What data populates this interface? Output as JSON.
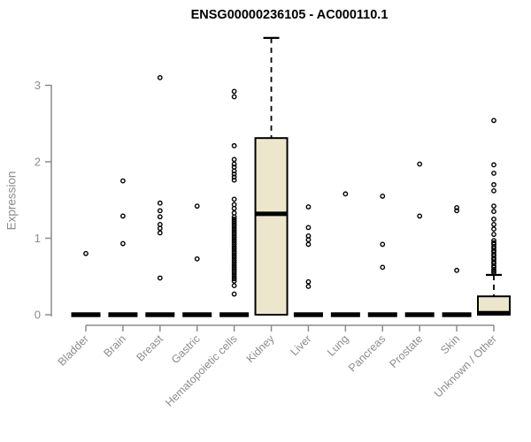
{
  "chart_data": {
    "type": "boxplot",
    "title": "ENSG00000236105 - AC000110.1",
    "ylabel": "Expression",
    "xlabel": "",
    "ylim": [
      0,
      3.65
    ],
    "yticks": [
      0,
      1,
      2,
      3
    ],
    "grid": false,
    "legend": "none",
    "colors": {
      "box_fill": "#ece7cc",
      "box_stroke": "#000000",
      "median": "#000000",
      "outlier": "#000000",
      "axis": "#8c8c8c",
      "tick_text": "#8c8c8c",
      "title_text": "#000000",
      "background": "#ffffff"
    },
    "categories": [
      "Bladder",
      "Brain",
      "Breast",
      "Gastric",
      "Hematopoietic cells",
      "Kidney",
      "Liver",
      "Lung",
      "Pancreas",
      "Prostate",
      "Skin",
      "Unknown / Other"
    ],
    "boxes": [
      {
        "label": "Bladder",
        "q1": 0,
        "median": 0,
        "q3": 0,
        "whisker_low": 0,
        "whisker_high": 0,
        "outliers": [
          0.8
        ]
      },
      {
        "label": "Brain",
        "q1": 0,
        "median": 0,
        "q3": 0,
        "whisker_low": 0,
        "whisker_high": 0,
        "outliers": [
          1.75,
          1.29,
          0.93
        ]
      },
      {
        "label": "Breast",
        "q1": 0,
        "median": 0,
        "q3": 0,
        "whisker_low": 0,
        "whisker_high": 0,
        "outliers": [
          3.1,
          1.46,
          1.36,
          1.28,
          1.18,
          1.13,
          1.07,
          0.48
        ]
      },
      {
        "label": "Gastric",
        "q1": 0,
        "median": 0,
        "q3": 0,
        "whisker_low": 0,
        "whisker_high": 0,
        "outliers": [
          1.42,
          0.73
        ]
      },
      {
        "label": "Hematopoietic cells",
        "q1": 0,
        "median": 0,
        "q3": 0,
        "whisker_low": 0,
        "whisker_high": 0,
        "outliers": [
          2.92,
          2.85,
          2.21,
          2.03,
          1.97,
          1.93,
          1.88,
          1.84,
          1.8,
          1.76,
          1.51,
          1.44,
          1.39,
          1.33,
          1.28,
          1.25,
          1.22,
          1.19,
          1.16,
          1.13,
          1.1,
          1.07,
          1.04,
          1.01,
          0.98,
          0.95,
          0.92,
          0.89,
          0.86,
          0.83,
          0.8,
          0.77,
          0.74,
          0.71,
          0.68,
          0.65,
          0.62,
          0.59,
          0.56,
          0.53,
          0.5,
          0.47,
          0.44,
          0.38,
          0.27
        ]
      },
      {
        "label": "Kidney",
        "q1": 0,
        "median": 1.32,
        "q3": 2.31,
        "whisker_low": 0,
        "whisker_high": 3.62,
        "outliers": []
      },
      {
        "label": "Liver",
        "q1": 0,
        "median": 0,
        "q3": 0,
        "whisker_low": 0,
        "whisker_high": 0,
        "outliers": [
          1.41,
          1.14,
          1.03,
          0.98,
          0.92,
          0.43,
          0.37
        ]
      },
      {
        "label": "Lung",
        "q1": 0,
        "median": 0,
        "q3": 0,
        "whisker_low": 0,
        "whisker_high": 0,
        "outliers": [
          1.58
        ]
      },
      {
        "label": "Pancreas",
        "q1": 0,
        "median": 0,
        "q3": 0,
        "whisker_low": 0,
        "whisker_high": 0,
        "outliers": [
          1.55,
          0.92,
          0.62
        ]
      },
      {
        "label": "Prostate",
        "q1": 0,
        "median": 0,
        "q3": 0,
        "whisker_low": 0,
        "whisker_high": 0,
        "outliers": [
          1.97,
          1.29
        ]
      },
      {
        "label": "Skin",
        "q1": 0,
        "median": 0,
        "q3": 0,
        "whisker_low": 0,
        "whisker_high": 0,
        "outliers": [
          1.4,
          1.36,
          0.58
        ]
      },
      {
        "label": "Unknown / Other",
        "q1": 0,
        "median": 0.02,
        "q3": 0.24,
        "whisker_low": 0,
        "whisker_high": 0.52,
        "outliers": [
          2.54,
          1.96,
          1.85,
          1.7,
          1.62,
          1.42,
          1.35,
          1.25,
          1.18,
          1.12,
          1.05,
          0.97,
          0.94,
          0.92,
          0.89,
          0.87,
          0.84,
          0.82,
          0.79,
          0.77,
          0.74,
          0.72,
          0.69,
          0.67,
          0.64,
          0.62,
          0.59,
          0.57,
          0.55
        ]
      }
    ]
  }
}
